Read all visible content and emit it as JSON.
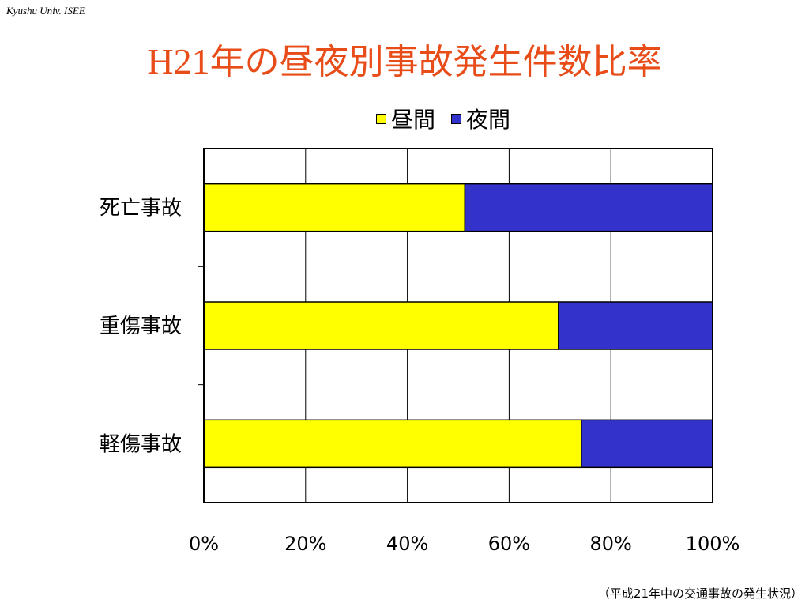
{
  "header": {
    "tag": "Kyushu Univ. ISEE"
  },
  "title": {
    "prefix": "H21",
    "text": "年の昼夜別事故発生件数比率"
  },
  "source_note": "（平成21年中の交通事故の発生状況）",
  "colors": {
    "title": "#e84c18",
    "day": "#ffff00",
    "night": "#3333cc",
    "axis": "#000000",
    "grid": "#000000"
  },
  "chart_data": {
    "type": "bar",
    "orientation": "horizontal",
    "stacked": true,
    "normalized": "percent",
    "categories": [
      "死亡事故",
      "重傷事故",
      "軽傷事故"
    ],
    "series": [
      {
        "name": "昼間",
        "values": [
          51.3,
          69.7,
          74.2
        ]
      },
      {
        "name": "夜間",
        "values": [
          48.7,
          30.3,
          25.8
        ]
      }
    ],
    "xlim": [
      0,
      100
    ],
    "xticks": [
      "0%",
      "20%",
      "40%",
      "60%",
      "80%",
      "100%"
    ],
    "grid": true,
    "legend_position": "top"
  }
}
